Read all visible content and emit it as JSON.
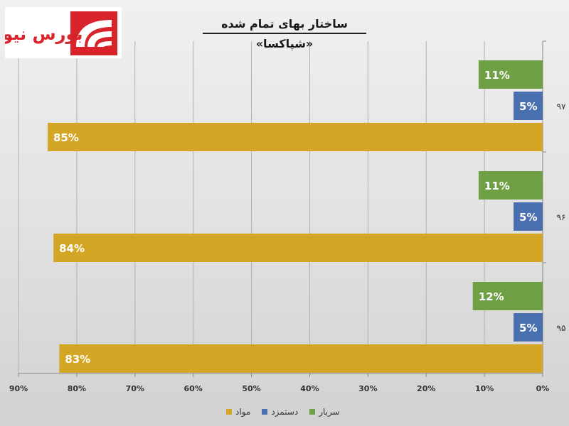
{
  "header": {
    "title": "ساختار بهای تمام شده «شپاکسا»",
    "logo_text": "بورس نیوز"
  },
  "colors": {
    "overhead": "#70a046",
    "labor": "#4a6fae",
    "materials": "#d4a625",
    "grid": "#b0b0b0",
    "axis": "#888888"
  },
  "chart_data": {
    "type": "bar",
    "orientation": "horizontal",
    "title": "ساختار بهای تمام شده «شپاکسا»",
    "categories": [
      "۹۷",
      "۹۶",
      "۹۵"
    ],
    "series": [
      {
        "name": "سربار",
        "color": "#70a046",
        "values": [
          11,
          11,
          12
        ],
        "labels": [
          "11%",
          "11%",
          "12%"
        ]
      },
      {
        "name": "دستمزد",
        "color": "#4a6fae",
        "values": [
          5,
          5,
          5
        ],
        "labels": [
          "5%",
          "5%",
          "5%"
        ]
      },
      {
        "name": "مواد",
        "color": "#d4a625",
        "values": [
          85,
          84,
          83
        ],
        "labels": [
          "85%",
          "84%",
          "83%"
        ]
      }
    ],
    "x_ticks": [
      "0%",
      "10%",
      "20%",
      "30%",
      "40%",
      "50%",
      "60%",
      "70%",
      "80%",
      "90%"
    ],
    "xlim": [
      0,
      90
    ],
    "x_reversed": true,
    "grid": true,
    "legend_position": "bottom"
  }
}
